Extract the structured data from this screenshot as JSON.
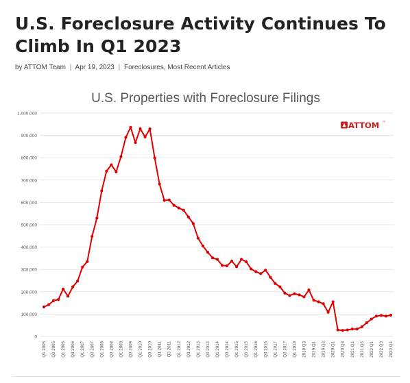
{
  "article": {
    "title": "U.S. Foreclosure Activity Continues To Climb In Q1 2023",
    "byline_prefix": "by",
    "author": "ATTOM Team",
    "date": "Apr 19, 2023",
    "categories": "Foreclosures, Most Recent Articles",
    "separator": "|"
  },
  "logo": {
    "text": "ATTOM",
    "trademark": "™",
    "color": "#cc1f1f"
  },
  "colors": {
    "line": "#e00000",
    "grid": "#e6e6e6",
    "text": "#595959",
    "title": "#595959"
  },
  "chart_data": {
    "type": "line",
    "title": "U.S. Properties with Foreclosure Filings",
    "xlabel": "",
    "ylabel": "",
    "ylim": [
      0,
      1000000
    ],
    "y_ticks": [
      "0",
      "100,000",
      "200,000",
      "300,000",
      "400,000",
      "500,000",
      "600,000",
      "700,000",
      "800,000",
      "900,000",
      "1,000,000"
    ],
    "x_tick_labels": [
      "Q1 2005",
      "Q3 2005",
      "Q1 2006",
      "Q3 2006",
      "Q1 2007",
      "Q3 2007",
      "Q1 2008",
      "Q3 2008",
      "Q1 2009",
      "Q3 2009",
      "Q1 2010",
      "Q3 2010",
      "Q1 2011",
      "Q3 2011",
      "Q1 2012",
      "Q3 2012",
      "Q1 2013",
      "Q3 2013",
      "Q1 2014",
      "Q3 2014",
      "Q1 2015",
      "Q3 2015",
      "Q1 2016",
      "Q3 2016",
      "Q1 2017",
      "Q3 2017",
      "Q1 2018",
      "2018 Q3",
      "2019 Q1",
      "2019 Q3",
      "2020 Q1",
      "2020 Q3",
      "2021 Q1",
      "2021 Q3",
      "2022 Q1",
      "2022 Q3",
      "2023 Q1"
    ],
    "grid": true,
    "legend": "none",
    "series": [
      {
        "values": [
          132000,
          142000,
          160000,
          165000,
          212000,
          180000,
          222000,
          248000,
          310000,
          335000,
          448000,
          530000,
          652000,
          740000,
          768000,
          737000,
          805000,
          891000,
          936000,
          868000,
          930000,
          893000,
          929000,
          799000,
          682000,
          609000,
          611000,
          587000,
          575000,
          565000,
          535000,
          505000,
          440000,
          405000,
          377000,
          352000,
          345000,
          318000,
          316000,
          337000,
          312000,
          345000,
          334000,
          302000,
          290000,
          281000,
          297000,
          265000,
          237000,
          222000,
          194000,
          183000,
          191000,
          186000,
          177000,
          208000,
          162000,
          155000,
          146000,
          108000,
          155000,
          29000,
          27000,
          29000,
          33000,
          33000,
          43000,
          61000,
          78000,
          91000,
          94000,
          91000,
          95000
        ]
      }
    ]
  }
}
